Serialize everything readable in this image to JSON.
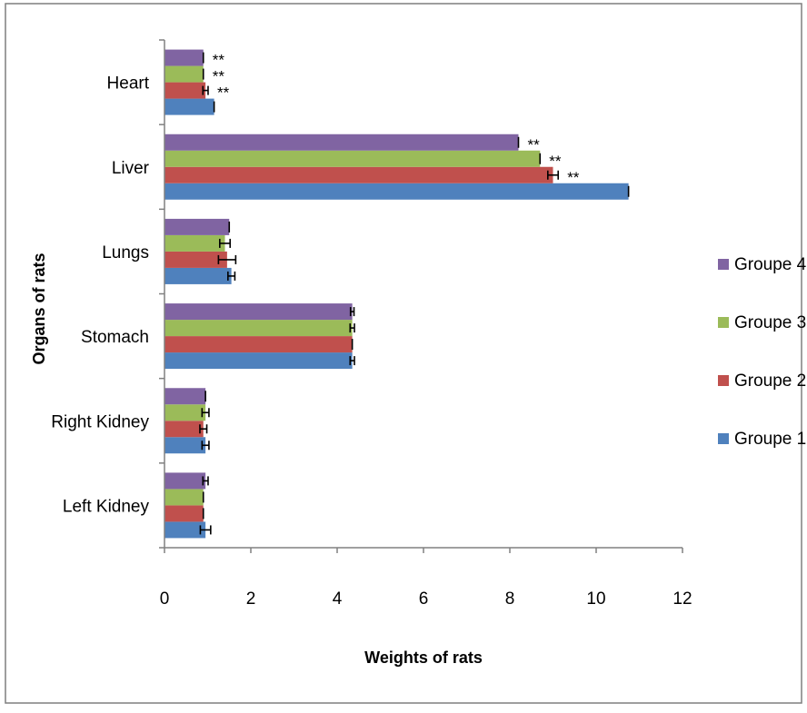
{
  "chart_data": {
    "type": "bar",
    "orientation": "horizontal",
    "categories": [
      "Heart",
      "Liver",
      "Lungs",
      "Stomach",
      "Right Kidney",
      "Left Kidney"
    ],
    "series": [
      {
        "name": "Groupe 1",
        "color": "#4f81bd",
        "values": [
          1.15,
          10.75,
          1.55,
          4.35,
          0.95,
          0.95
        ],
        "errors": [
          0,
          0,
          0.08,
          0.05,
          0.08,
          0.12
        ],
        "marks": [
          "",
          "",
          "",
          "",
          "",
          ""
        ]
      },
      {
        "name": "Groupe 2",
        "color": "#c0504d",
        "values": [
          0.95,
          9.0,
          1.45,
          4.35,
          0.9,
          0.9
        ],
        "errors": [
          0.06,
          0.12,
          0.2,
          0,
          0.08,
          0
        ],
        "marks": [
          "**",
          "**",
          "",
          "",
          "",
          ""
        ]
      },
      {
        "name": "Groupe 3",
        "color": "#9bbb59",
        "values": [
          0.9,
          8.7,
          1.4,
          4.35,
          0.95,
          0.9
        ],
        "errors": [
          0,
          0,
          0.12,
          0.05,
          0.08,
          0
        ],
        "marks": [
          "**",
          "**",
          "",
          "",
          "",
          ""
        ]
      },
      {
        "name": "Groupe 4",
        "color": "#8064a2",
        "values": [
          0.9,
          8.2,
          1.5,
          4.35,
          0.95,
          0.95
        ],
        "errors": [
          0,
          0,
          0,
          0.04,
          0,
          0.06
        ],
        "marks": [
          "**",
          "**",
          "",
          "",
          "",
          ""
        ]
      }
    ],
    "xlabel": "Weights of rats",
    "ylabel": "Organs of rats",
    "xlim": [
      0,
      12
    ],
    "xticks": [
      "0",
      "2",
      "4",
      "6",
      "8",
      "10",
      "12"
    ],
    "grid": false,
    "legend_position": "right"
  }
}
